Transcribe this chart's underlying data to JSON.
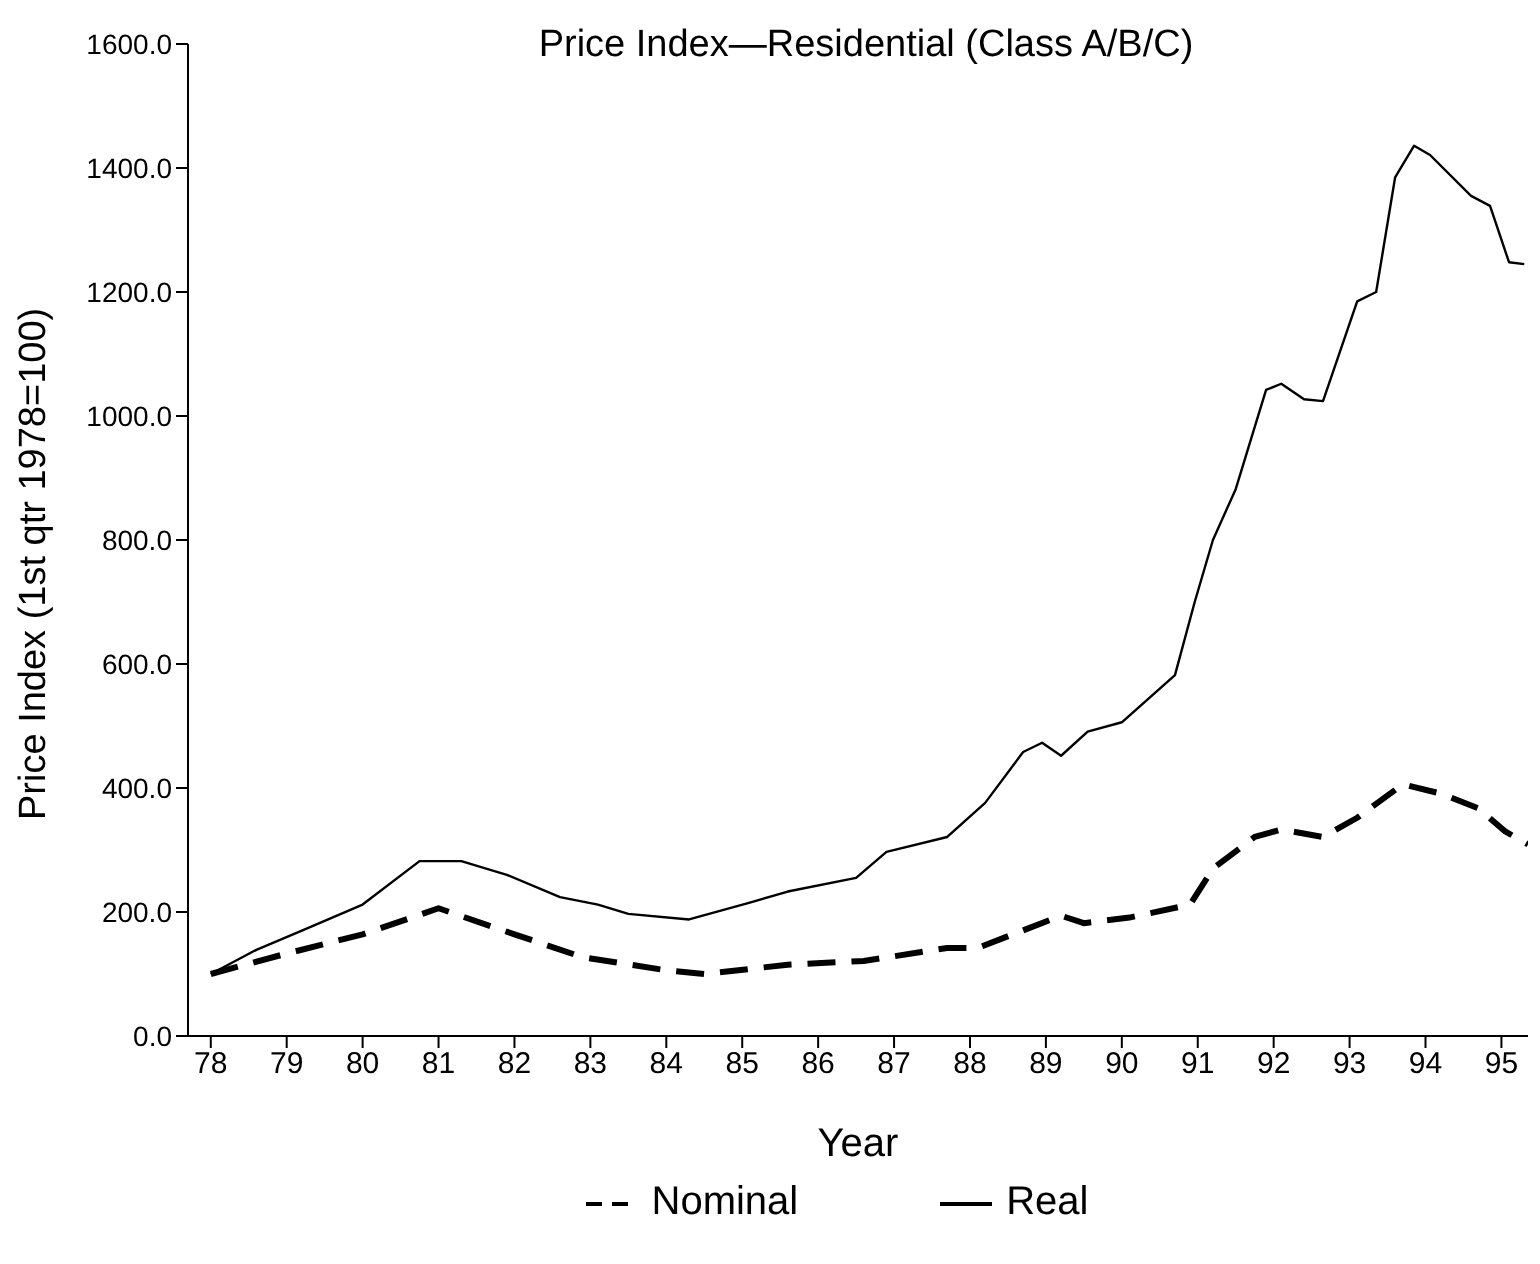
{
  "chart_data": {
    "type": "line",
    "title": "Price Index—Residential (Class A/B/C)",
    "xlabel": "Year",
    "ylabel": "Price Index (1st qtr 1978=100)",
    "xlim": [
      77.7,
      95.35
    ],
    "xticks": [
      78,
      79,
      80,
      81,
      82,
      83,
      84,
      85,
      86,
      87,
      88,
      89,
      90,
      91,
      92,
      93,
      94,
      95
    ],
    "ylim": [
      0,
      1600
    ],
    "yticks": [
      {
        "value": 0,
        "label": "0.0"
      },
      {
        "value": 200,
        "label": "200.0"
      },
      {
        "value": 400,
        "label": "400.0"
      },
      {
        "value": 600,
        "label": "600.0"
      },
      {
        "value": 800,
        "label": "800.0"
      },
      {
        "value": 1000,
        "label": "1000.0"
      },
      {
        "value": 1200,
        "label": "1200.0"
      },
      {
        "value": 1400,
        "label": "1400.0"
      },
      {
        "value": 1600,
        "label": "1600.0"
      }
    ],
    "grid": false,
    "legend": "bottom",
    "marker": "none",
    "series": [
      {
        "name": "Nominal",
        "color": "#000000",
        "line_style": "dashed",
        "x": [
          78,
          79,
          80,
          81,
          82,
          82.9,
          84,
          84.5,
          85.6,
          86.6,
          87.7,
          88.1,
          89.2,
          89.5,
          90.1,
          90.9,
          91.2,
          91.75,
          92.1,
          92.65,
          93.1,
          93.7,
          94.2,
          94.7,
          95.05,
          95.35
        ],
        "values": [
          100,
          133,
          164,
          206,
          164,
          127,
          106,
          100,
          115,
          121,
          142,
          142,
          194,
          182,
          191,
          212,
          270,
          321,
          333,
          321,
          352,
          406,
          391,
          367,
          330,
          309
        ]
      },
      {
        "name": "Real",
        "color": "#000000",
        "line_style": "solid",
        "x": [
          78,
          78.6,
          79.2,
          80,
          80.75,
          81.3,
          81.9,
          82.6,
          83.1,
          83.5,
          84.3,
          85.1,
          85.6,
          86.5,
          86.9,
          87.7,
          88.2,
          88.7,
          88.95,
          89.2,
          89.55,
          90,
          90.7,
          90.96,
          91.2,
          91.5,
          91.9,
          92.1,
          92.4,
          92.65,
          93.1,
          93.35,
          93.6,
          93.85,
          94.06,
          94.6,
          94.85,
          95.1,
          95.3
        ],
        "values": [
          100,
          139,
          170,
          212,
          282,
          282,
          260,
          224,
          212,
          197,
          188,
          215,
          233,
          255,
          297,
          321,
          376,
          458,
          473,
          452,
          491,
          506,
          582,
          700,
          800,
          882,
          1042,
          1052,
          1027,
          1024,
          1185,
          1200,
          1385,
          1436,
          1421,
          1355,
          1339,
          1248,
          1245
        ]
      }
    ]
  }
}
